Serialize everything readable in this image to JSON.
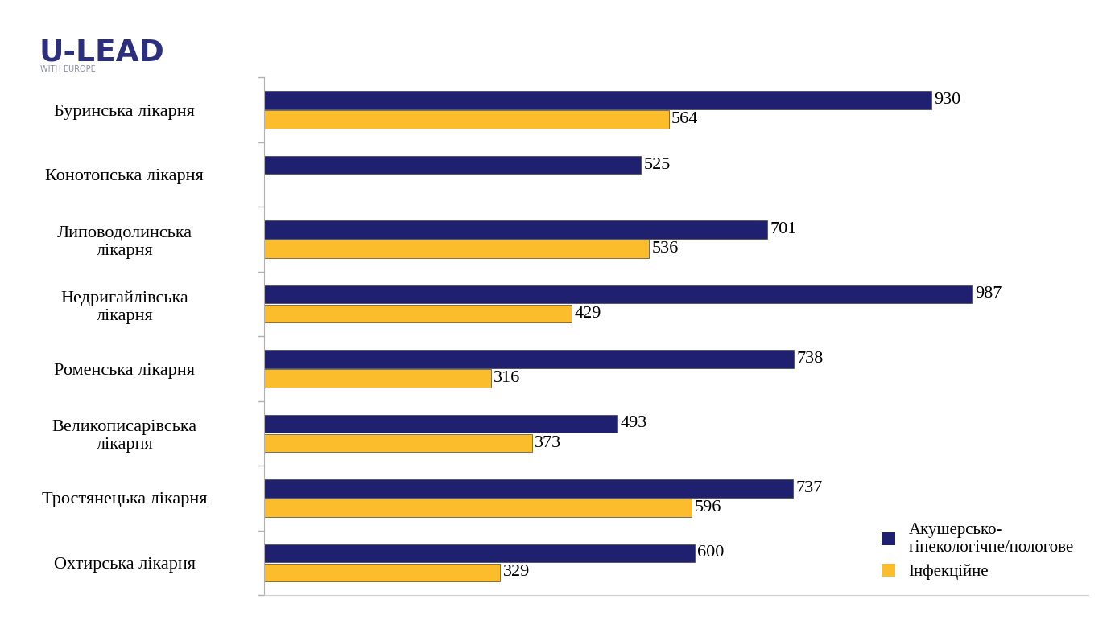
{
  "header": {
    "logo": "U-LEAD",
    "logo_subtitle": "WITH EUROPE"
  },
  "chart_data": {
    "type": "bar",
    "orientation": "horizontal",
    "categories": [
      "Буринська лікарня",
      "Конотопська лікарня",
      "Липоводолинська\nлікарня",
      "Недригайлівська\nлікарня",
      "Роменська лікарня",
      "Великописарівська\nлікарня",
      "Тростянецька лікарня",
      "Охтирська лікарня"
    ],
    "series": [
      {
        "name": "Акушерсько-\nгінекологічне/пологове",
        "color": "#1f2170",
        "values": [
          930,
          525,
          701,
          987,
          738,
          493,
          737,
          600
        ]
      },
      {
        "name": "Інфекційне",
        "color": "#fbbd2b",
        "values": [
          564,
          null,
          536,
          429,
          316,
          373,
          596,
          329
        ]
      }
    ],
    "xlim": [
      0,
      1150
    ],
    "xticks": [],
    "grid": false,
    "legend": "lower right",
    "data_labels": true,
    "tick_labels": "y"
  }
}
